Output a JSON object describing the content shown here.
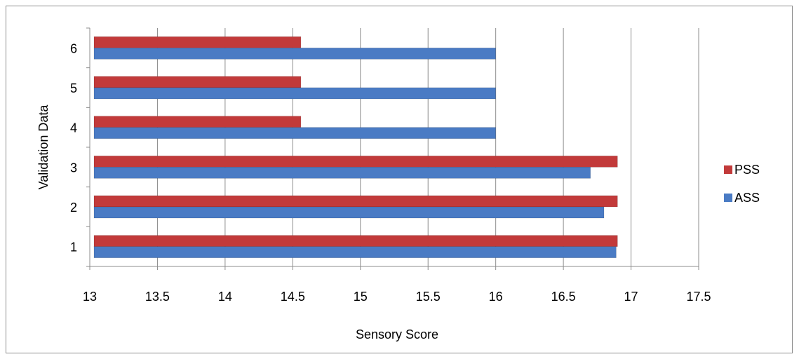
{
  "chart_data": {
    "type": "bar",
    "orientation": "horizontal",
    "categories": [
      "1",
      "2",
      "3",
      "4",
      "5",
      "6"
    ],
    "series": [
      {
        "name": "ASS",
        "color": "#4a7bc4",
        "values": [
          16.89,
          16.8,
          16.7,
          16.0,
          16.0,
          16.0
        ]
      },
      {
        "name": "PSS",
        "color": "#c23a3a",
        "values": [
          16.9,
          16.9,
          16.9,
          14.56,
          14.56,
          14.56
        ]
      }
    ],
    "xlabel": "Sensory Score",
    "ylabel": "Validation Data",
    "xlim": [
      13,
      17.5
    ],
    "xticks": [
      13,
      13.5,
      14,
      14.5,
      15,
      15.5,
      16,
      16.5,
      17,
      17.5
    ],
    "xtick_labels": [
      "13",
      "13.5",
      "14",
      "14.5",
      "15",
      "15.5",
      "16",
      "16.5",
      "17",
      "17.5"
    ],
    "grid": "vertical",
    "legend_position": "right",
    "legend_order": [
      "PSS",
      "ASS"
    ]
  }
}
